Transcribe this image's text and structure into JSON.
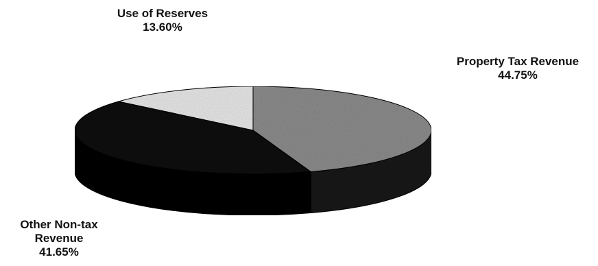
{
  "chart_data": {
    "type": "pie",
    "style": "3d",
    "slices": [
      {
        "label": "Property Tax Revenue",
        "value": 44.75,
        "display": "44.75%",
        "color": "#8f8f8f",
        "side_color": "#1e1e1e"
      },
      {
        "label": "Other Non-tax Revenue",
        "value": 41.65,
        "display": "41.65%",
        "color": "#121212",
        "side_color": "#0a0a0a"
      },
      {
        "label": "Use of Reserves",
        "value": 13.6,
        "display": "13.60%",
        "color": "#ececec",
        "side_color": "#bdbdbd"
      }
    ]
  },
  "labels": {
    "reserves": {
      "name_lines": [
        "Use of Reserves"
      ],
      "value": "13.60%"
    },
    "property": {
      "name_lines": [
        "Property Tax Revenue"
      ],
      "value": "44.75%"
    },
    "other": {
      "name_lines": [
        "Other Non-tax",
        "Revenue"
      ],
      "value": "41.65%"
    }
  }
}
